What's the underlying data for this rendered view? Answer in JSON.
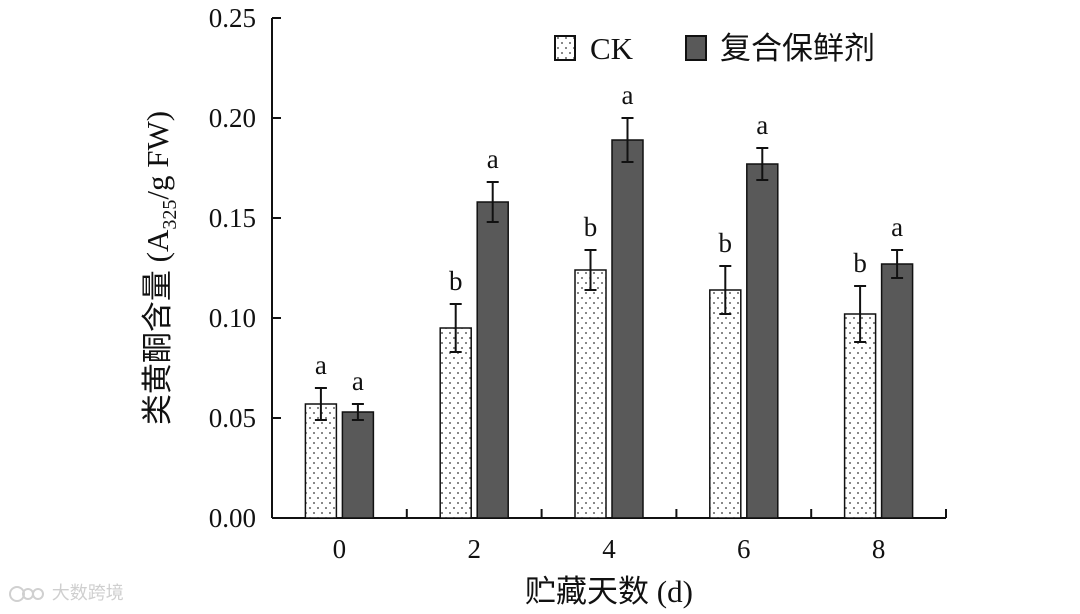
{
  "chart_data": {
    "type": "bar",
    "categories": [
      "0",
      "2",
      "4",
      "6",
      "8"
    ],
    "series": [
      {
        "name": "CK",
        "pattern": "dotted",
        "fill": "#ffffff",
        "values": [
          0.057,
          0.095,
          0.124,
          0.114,
          0.102
        ],
        "errors": [
          0.008,
          0.012,
          0.01,
          0.012,
          0.014
        ],
        "sig_labels": [
          "a",
          "b",
          "b",
          "b",
          "b"
        ]
      },
      {
        "name": "复合保鲜剂",
        "fill": "#595959",
        "values": [
          0.053,
          0.158,
          0.189,
          0.177,
          0.127
        ],
        "errors": [
          0.004,
          0.01,
          0.011,
          0.008,
          0.007
        ],
        "sig_labels": [
          "a",
          "a",
          "a",
          "a",
          "a"
        ]
      }
    ],
    "xlabel": "贮藏天数 (d)",
    "ylabel": {
      "prefix": "类黄酮含量 (A",
      "subscript": "325",
      "suffix": "/g FW)"
    },
    "ylim": [
      0,
      0.25
    ],
    "yticks": [
      "0.00",
      "0.05",
      "0.10",
      "0.15",
      "0.20",
      "0.25"
    ],
    "legend_position": "top-right",
    "grid": false
  },
  "watermark": {
    "text": "大数跨境",
    "icon": "camera-logo-icon"
  }
}
